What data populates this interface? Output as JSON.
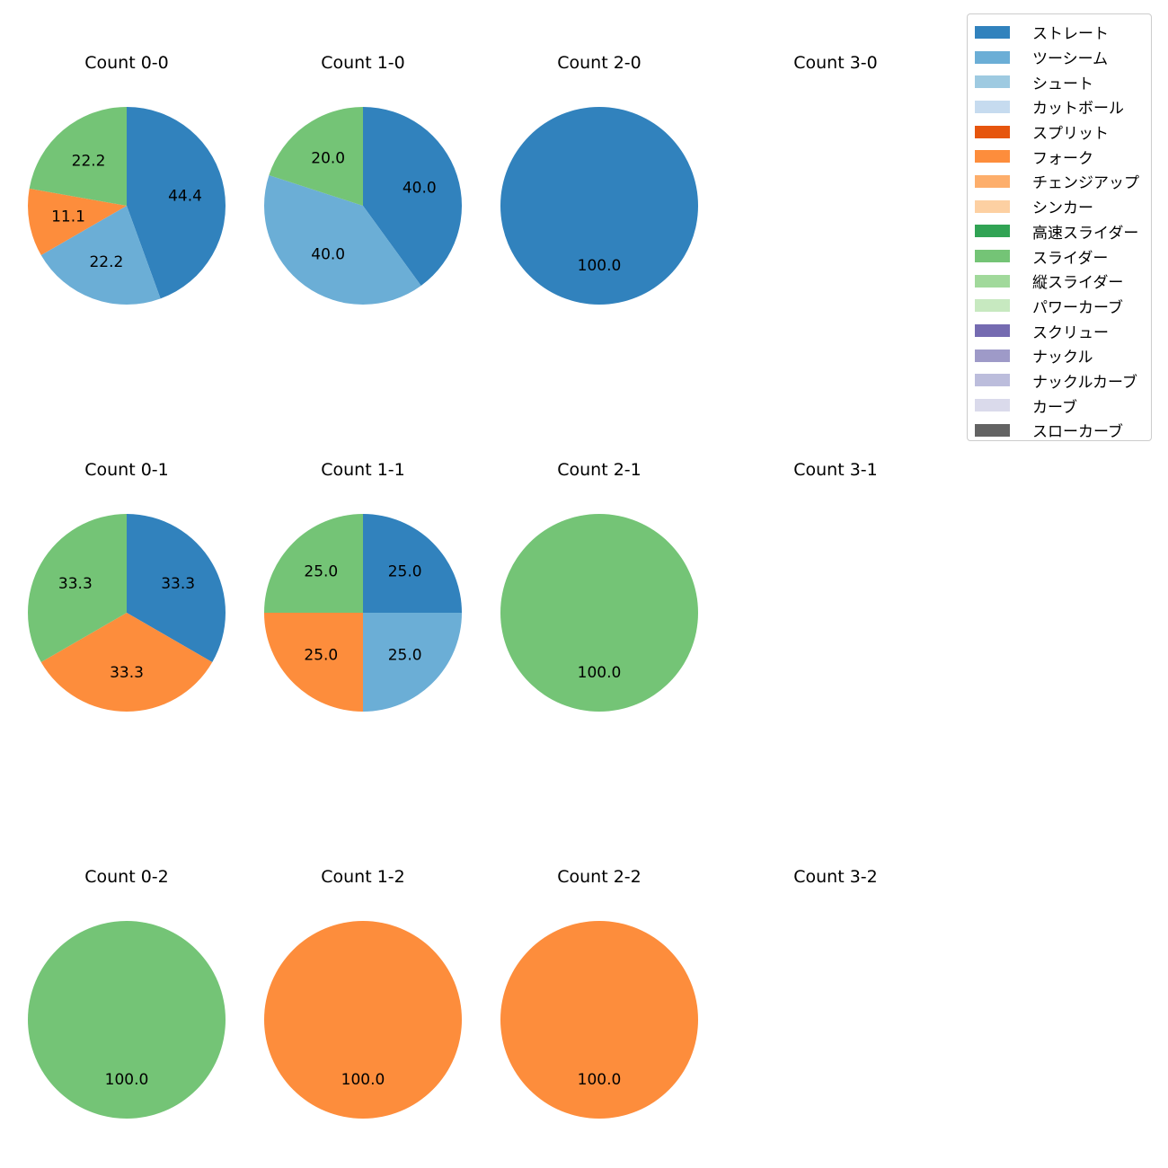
{
  "chart_data": {
    "type": "pie",
    "legend": {
      "placement": "top-right",
      "entries": [
        {
          "label": "ストレート",
          "color": "#3182bd"
        },
        {
          "label": "ツーシーム",
          "color": "#6baed6"
        },
        {
          "label": "シュート",
          "color": "#9ecae1"
        },
        {
          "label": "カットボール",
          "color": "#c6dbef"
        },
        {
          "label": "スプリット",
          "color": "#e6550d"
        },
        {
          "label": "フォーク",
          "color": "#fd8d3c"
        },
        {
          "label": "チェンジアップ",
          "color": "#fdae6b"
        },
        {
          "label": "シンカー",
          "color": "#fdd0a2"
        },
        {
          "label": "高速スライダー",
          "color": "#31a354"
        },
        {
          "label": "スライダー",
          "color": "#74c476"
        },
        {
          "label": "縦スライダー",
          "color": "#a1d99b"
        },
        {
          "label": "パワーカーブ",
          "color": "#c7e9c0"
        },
        {
          "label": "スクリュー",
          "color": "#756bb1"
        },
        {
          "label": "ナックル",
          "color": "#9e9ac8"
        },
        {
          "label": "ナックルカーブ",
          "color": "#bcbddc"
        },
        {
          "label": "カーブ",
          "color": "#dadaeb"
        },
        {
          "label": "スローカーブ",
          "color": "#636363"
        }
      ]
    },
    "start_angle": 90,
    "direction": "clockwise",
    "pies": [
      {
        "title": "Count 0-0",
        "slices": [
          {
            "pitch": "ストレート",
            "value": 44.4
          },
          {
            "pitch": "ツーシーム",
            "value": 22.2
          },
          {
            "pitch": "フォーク",
            "value": 11.1
          },
          {
            "pitch": "スライダー",
            "value": 22.2
          }
        ]
      },
      {
        "title": "Count 1-0",
        "slices": [
          {
            "pitch": "ストレート",
            "value": 40.0
          },
          {
            "pitch": "ツーシーム",
            "value": 40.0
          },
          {
            "pitch": "スライダー",
            "value": 20.0
          }
        ]
      },
      {
        "title": "Count 2-0",
        "slices": [
          {
            "pitch": "ストレート",
            "value": 100.0
          }
        ]
      },
      {
        "title": "Count 3-0",
        "slices": []
      },
      {
        "title": "Count 0-1",
        "slices": [
          {
            "pitch": "ストレート",
            "value": 33.3
          },
          {
            "pitch": "フォーク",
            "value": 33.3
          },
          {
            "pitch": "スライダー",
            "value": 33.3
          }
        ]
      },
      {
        "title": "Count 1-1",
        "slices": [
          {
            "pitch": "ストレート",
            "value": 25.0
          },
          {
            "pitch": "ツーシーム",
            "value": 25.0
          },
          {
            "pitch": "フォーク",
            "value": 25.0
          },
          {
            "pitch": "スライダー",
            "value": 25.0
          }
        ]
      },
      {
        "title": "Count 2-1",
        "slices": [
          {
            "pitch": "スライダー",
            "value": 100.0
          }
        ]
      },
      {
        "title": "Count 3-1",
        "slices": []
      },
      {
        "title": "Count 0-2",
        "slices": [
          {
            "pitch": "スライダー",
            "value": 100.0
          }
        ]
      },
      {
        "title": "Count 1-2",
        "slices": [
          {
            "pitch": "フォーク",
            "value": 100.0
          }
        ]
      },
      {
        "title": "Count 2-2",
        "slices": [
          {
            "pitch": "フォーク",
            "value": 100.0
          }
        ]
      },
      {
        "title": "Count 3-2",
        "slices": []
      }
    ]
  }
}
